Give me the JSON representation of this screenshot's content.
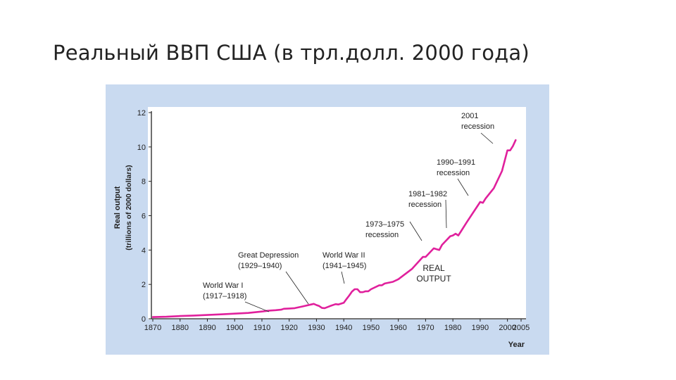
{
  "slide": {
    "title": "Реальный ВВП США (в трл.долл. 2000 года)"
  },
  "colors": {
    "panel_background": "#c9daf0",
    "plot_background": "#ffffff",
    "line": "#e0209c",
    "text": "#222222"
  },
  "chart_data": {
    "type": "line",
    "title": "",
    "ylabel_line1": "Real output",
    "ylabel_line2": "(trillions of 2000 dollars)",
    "xlabel": "Year",
    "xlim": [
      1870,
      2005
    ],
    "ylim": [
      0,
      12
    ],
    "grid": false,
    "xticks": [
      1870,
      1880,
      1890,
      1900,
      1910,
      1920,
      1930,
      1940,
      1950,
      1960,
      1970,
      1980,
      1990,
      2000,
      2005
    ],
    "yticks": [
      0,
      2,
      4,
      6,
      8,
      10,
      12
    ],
    "series": [
      {
        "name": "REAL OUTPUT",
        "name_line1": "REAL",
        "name_line2": "OUTPUT",
        "x": [
          1870,
          1875,
          1880,
          1885,
          1890,
          1895,
          1900,
          1905,
          1910,
          1913,
          1915,
          1917,
          1918,
          1920,
          1922,
          1925,
          1929,
          1930,
          1931,
          1932,
          1933,
          1935,
          1937,
          1938,
          1940,
          1941,
          1942,
          1943,
          1944,
          1945,
          1946,
          1947,
          1948,
          1949,
          1950,
          1953,
          1954,
          1955,
          1958,
          1960,
          1965,
          1969,
          1970,
          1973,
          1974,
          1975,
          1976,
          1979,
          1980,
          1981,
          1982,
          1983,
          1985,
          1990,
          1991,
          1992,
          1995,
          1998,
          2000,
          2001,
          2002,
          2003
        ],
        "values": [
          0.1,
          0.12,
          0.16,
          0.19,
          0.22,
          0.26,
          0.3,
          0.34,
          0.42,
          0.48,
          0.5,
          0.53,
          0.58,
          0.6,
          0.62,
          0.72,
          0.87,
          0.8,
          0.74,
          0.63,
          0.62,
          0.74,
          0.85,
          0.83,
          0.93,
          1.15,
          1.35,
          1.58,
          1.72,
          1.72,
          1.55,
          1.55,
          1.6,
          1.6,
          1.72,
          1.95,
          1.95,
          2.05,
          2.15,
          2.3,
          2.9,
          3.6,
          3.6,
          4.1,
          4.05,
          4.0,
          4.3,
          4.8,
          4.85,
          4.95,
          4.85,
          5.1,
          5.6,
          6.8,
          6.75,
          7.0,
          7.6,
          8.6,
          9.8,
          9.8,
          10.05,
          10.4
        ]
      }
    ],
    "annotations": [
      {
        "line1": "World War I",
        "line2": "(1917–1918)"
      },
      {
        "line1": "Great Depression",
        "line2": "(1929–1940)"
      },
      {
        "line1": "World War II",
        "line2": "(1941–1945)"
      },
      {
        "line1": "1973–1975",
        "line2": "recession"
      },
      {
        "line1": "1981–1982",
        "line2": "recession"
      },
      {
        "line1": "1990–1991",
        "line2": "recession"
      },
      {
        "line1": "2001",
        "line2": "recession"
      }
    ]
  }
}
